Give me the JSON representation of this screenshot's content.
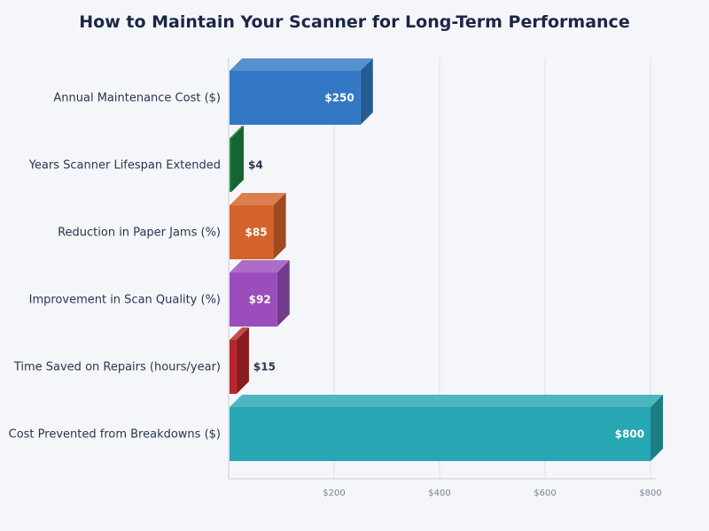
{
  "chart_data": {
    "type": "bar",
    "orientation": "horizontal",
    "title": "How to Maintain Your Scanner for Long-Term Performance",
    "categories": [
      "Annual Maintenance Cost ($)",
      "Years Scanner Lifespan Extended",
      "Reduction in Paper Jams (%)",
      "Improvement in Scan Quality (%)",
      "Time Saved on Repairs (hours/year)",
      "Cost Prevented from Breakdowns ($)"
    ],
    "values": [
      250,
      4,
      85,
      92,
      15,
      800
    ],
    "value_labels": [
      "$250",
      "$4",
      "$85",
      "$92",
      "$15",
      "$800"
    ],
    "colors": [
      "#3278c4",
      "#208445",
      "#d4632a",
      "#9a4dbb",
      "#b8252b",
      "#27a6b3"
    ],
    "xlim": [
      0,
      810
    ],
    "xticks": [
      200,
      400,
      600,
      800
    ],
    "xtick_labels": [
      "$200",
      "$400",
      "$600",
      "$800"
    ],
    "grid": "vertical",
    "style": "3d"
  }
}
